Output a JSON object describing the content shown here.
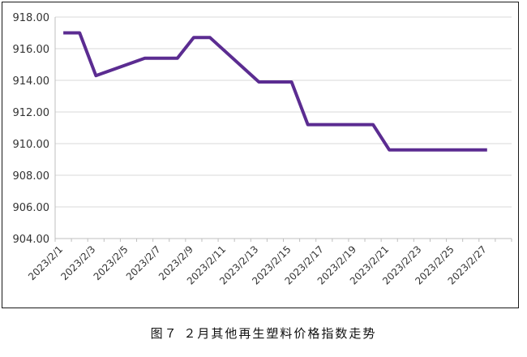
{
  "caption": "图７ ２月其他再生塑料价格指数走势",
  "chart_data": {
    "type": "line",
    "title": "",
    "xlabel": "",
    "ylabel": "",
    "ylim": [
      904,
      918
    ],
    "yticks": [
      "904.00",
      "906.00",
      "908.00",
      "910.00",
      "912.00",
      "914.00",
      "916.00",
      "918.00"
    ],
    "xticks": [
      "2023/2/1",
      "2023/2/3",
      "2023/2/5",
      "2023/2/7",
      "2023/2/9",
      "2023/2/11",
      "2023/2/13",
      "2023/2/15",
      "2023/2/17",
      "2023/2/19",
      "2023/2/21",
      "2023/2/23",
      "2023/2/25",
      "2023/2/27"
    ],
    "grid": true,
    "legend": "none",
    "line_color": "#5b2c91",
    "series": [
      {
        "x": [
          "2023/2/1",
          "2023/2/2",
          "2023/2/3",
          "2023/2/6",
          "2023/2/8",
          "2023/2/9",
          "2023/2/10",
          "2023/2/13",
          "2023/2/15",
          "2023/2/16",
          "2023/2/20",
          "2023/2/21",
          "2023/2/27"
        ],
        "values": [
          917.0,
          917.0,
          914.3,
          915.4,
          915.4,
          916.7,
          916.7,
          913.9,
          913.9,
          911.2,
          911.2,
          909.6,
          909.6
        ]
      }
    ]
  }
}
